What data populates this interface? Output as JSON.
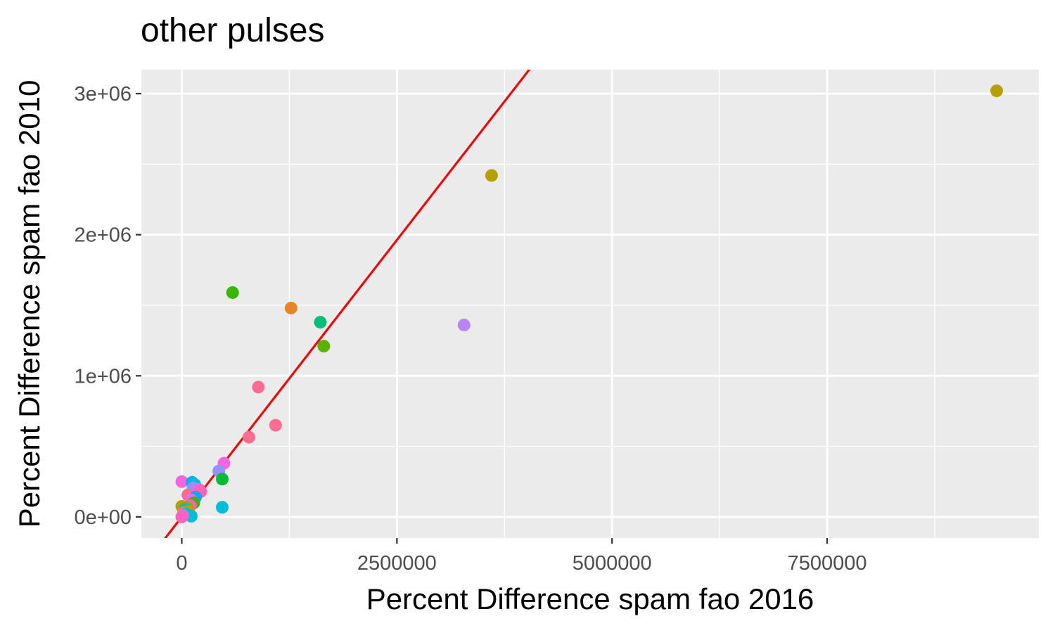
{
  "chart_data": {
    "type": "scatter",
    "title": "other pulses",
    "xlabel": "Percent Difference spam fao 2016",
    "ylabel": "Percent Difference spam fao 2010",
    "xlim": [
      -470000,
      9960000
    ],
    "ylim": [
      -150000,
      3170000
    ],
    "x_ticks": [
      0,
      2500000,
      5000000,
      7500000
    ],
    "x_tick_labels": [
      "0",
      "2500000",
      "5000000",
      "7500000"
    ],
    "y_ticks": [
      0,
      1000000,
      2000000,
      3000000
    ],
    "y_tick_labels": [
      "0e+00",
      "1e+06",
      "2e+06",
      "3e+06"
    ],
    "grid": true,
    "legend": "none",
    "colors": {
      "panel_bg": "#ebebeb",
      "grid_major": "#ffffff",
      "reference_line": "#e8080a"
    },
    "reference_line": {
      "slope": 0.785,
      "intercept": 0
    },
    "points": [
      {
        "x": 9470000,
        "y": 3020000,
        "color": "#b79f00"
      },
      {
        "x": 3600000,
        "y": 2420000,
        "color": "#b79f00"
      },
      {
        "x": 590000,
        "y": 1590000,
        "color": "#39b600"
      },
      {
        "x": 1270000,
        "y": 1480000,
        "color": "#e88526"
      },
      {
        "x": 1610000,
        "y": 1380000,
        "color": "#00bf7d"
      },
      {
        "x": 1650000,
        "y": 1210000,
        "color": "#5bb300"
      },
      {
        "x": 3280000,
        "y": 1360000,
        "color": "#b983ff"
      },
      {
        "x": 890000,
        "y": 920000,
        "color": "#ff6c91"
      },
      {
        "x": 1090000,
        "y": 650000,
        "color": "#ff6c91"
      },
      {
        "x": 780000,
        "y": 565000,
        "color": "#ff6c91"
      },
      {
        "x": 490000,
        "y": 380000,
        "color": "#f564e3"
      },
      {
        "x": 430000,
        "y": 325000,
        "color": "#9590ff"
      },
      {
        "x": 470000,
        "y": 268000,
        "color": "#00ba38"
      },
      {
        "x": 470000,
        "y": 68000,
        "color": "#00bcd8"
      },
      {
        "x": 0,
        "y": 250000,
        "color": "#f564e3"
      },
      {
        "x": 120000,
        "y": 245000,
        "color": "#00b0f6"
      },
      {
        "x": 150000,
        "y": 230000,
        "color": "#00bcd8"
      },
      {
        "x": 130000,
        "y": 205000,
        "color": "#9590ff"
      },
      {
        "x": 200000,
        "y": 195000,
        "color": "#f564e3"
      },
      {
        "x": 220000,
        "y": 180000,
        "color": "#ff64b0"
      },
      {
        "x": 70000,
        "y": 155000,
        "color": "#ff6c91"
      },
      {
        "x": 160000,
        "y": 140000,
        "color": "#00a9ff"
      },
      {
        "x": 110000,
        "y": 120000,
        "color": "#e76bf3"
      },
      {
        "x": 140000,
        "y": 100000,
        "color": "#39b600"
      },
      {
        "x": 100000,
        "y": 80000,
        "color": "#ff62bc"
      },
      {
        "x": 0,
        "y": 75000,
        "color": "#b79f00"
      },
      {
        "x": 60000,
        "y": 70000,
        "color": "#9caa00"
      },
      {
        "x": 40000,
        "y": 55000,
        "color": "#00c1a3"
      },
      {
        "x": 80000,
        "y": 40000,
        "color": "#d39200"
      },
      {
        "x": 20000,
        "y": 30000,
        "color": "#f8766d"
      },
      {
        "x": 50000,
        "y": 20000,
        "color": "#00bfc4"
      },
      {
        "x": 110000,
        "y": 5000,
        "color": "#00bcd8"
      },
      {
        "x": 10000,
        "y": 10000,
        "color": "#db72fb"
      },
      {
        "x": 0,
        "y": 0,
        "color": "#f8766d"
      },
      {
        "x": 5000,
        "y": 3000,
        "color": "#ff61c3"
      }
    ]
  }
}
